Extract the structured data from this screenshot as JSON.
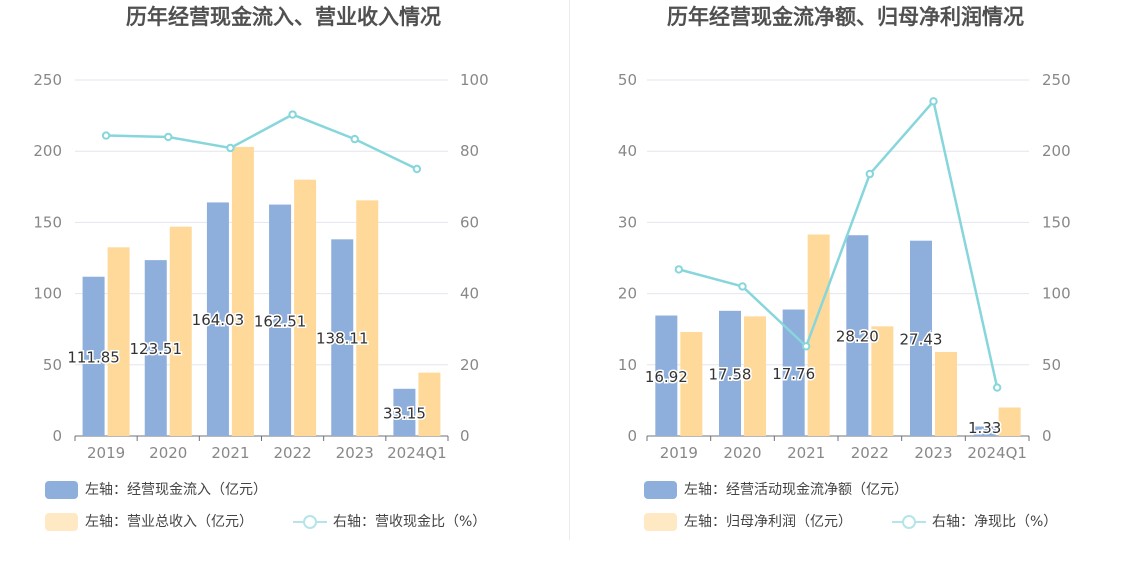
{
  "colors": {
    "bar_blue": "#8eaedc",
    "bar_orange": "#ffd99a",
    "line_cyan": "#86d6dc",
    "axis_text": "#888888",
    "grid": "#e3e6ef"
  },
  "chart_data": [
    {
      "type": "bar",
      "title": "历年经营现金流入、营业收入情况",
      "categories": [
        "2019",
        "2020",
        "2021",
        "2022",
        "2023",
        "2024Q1"
      ],
      "left_axis": {
        "ylim": [
          0,
          250
        ],
        "ticks": [
          "0",
          "50",
          "100",
          "150",
          "200",
          "250"
        ]
      },
      "right_axis": {
        "ylim": [
          0,
          100
        ],
        "ticks": [
          "0",
          "20",
          "40",
          "60",
          "80",
          "100"
        ]
      },
      "grid": true,
      "legend_position": "bottom-left",
      "series": [
        {
          "name": "左轴：经营现金流入（亿元）",
          "kind": "bar",
          "axis": "left",
          "values": [
            111.85,
            123.51,
            164.03,
            162.51,
            138.11,
            33.15
          ],
          "labels": [
            "111.85",
            "123.51",
            "164.03",
            "162.51",
            "138.11",
            "33.15"
          ]
        },
        {
          "name": "左轴：营业总收入（亿元）",
          "kind": "bar",
          "axis": "left",
          "values": [
            132.5,
            147.0,
            203.0,
            180.0,
            165.5,
            44.5
          ]
        },
        {
          "name": "右轴：营收现金比（%）",
          "kind": "line",
          "axis": "right",
          "values": [
            84.4,
            84.0,
            80.9,
            90.3,
            83.4,
            75.0
          ]
        }
      ]
    },
    {
      "type": "bar",
      "title": "历年经营现金流净额、归母净利润情况",
      "categories": [
        "2019",
        "2020",
        "2021",
        "2022",
        "2023",
        "2024Q1"
      ],
      "left_axis": {
        "ylim": [
          0,
          50
        ],
        "ticks": [
          "0",
          "10",
          "20",
          "30",
          "40",
          "50"
        ]
      },
      "right_axis": {
        "ylim": [
          0,
          250
        ],
        "ticks": [
          "0",
          "50",
          "100",
          "150",
          "200",
          "250"
        ]
      },
      "grid": true,
      "legend_position": "bottom-left",
      "series": [
        {
          "name": "左轴：经营活动现金流净额（亿元）",
          "kind": "bar",
          "axis": "left",
          "values": [
            16.92,
            17.58,
            17.76,
            28.2,
            27.43,
            1.33
          ],
          "labels": [
            "16.92",
            "17.58",
            "17.76",
            "28.20",
            "27.43",
            "1.33"
          ]
        },
        {
          "name": "左轴：归母净利润（亿元）",
          "kind": "bar",
          "axis": "left",
          "values": [
            14.6,
            16.8,
            28.3,
            15.4,
            11.8,
            4.0
          ]
        },
        {
          "name": "右轴：净现比（%）",
          "kind": "line",
          "axis": "right",
          "values": [
            117.0,
            105.0,
            63.0,
            184.0,
            235.0,
            34.0
          ]
        }
      ]
    }
  ]
}
